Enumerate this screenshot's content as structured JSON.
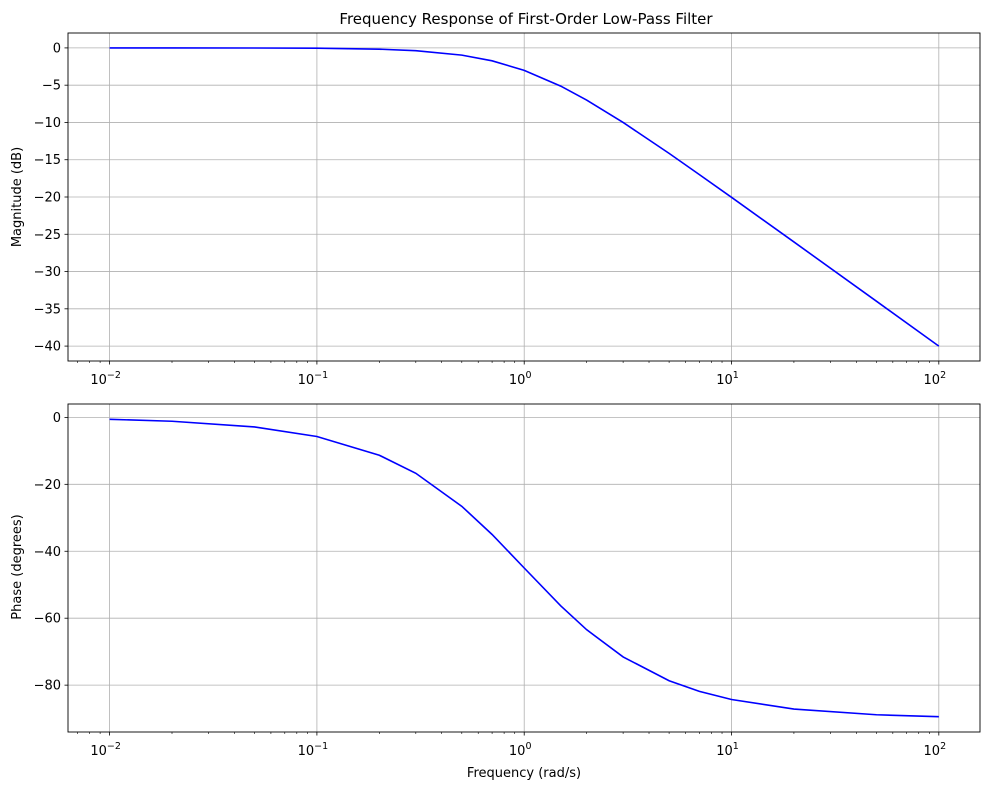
{
  "chart_data": [
    {
      "type": "line",
      "title": "Frequency Response of First-Order Low-Pass Filter",
      "xlabel": "",
      "ylabel": "Magnitude (dB)",
      "xscale": "log",
      "xlim": [
        0.0063,
        158
      ],
      "ylim": [
        -42,
        2
      ],
      "xticks": [
        0.01,
        0.1,
        1,
        10,
        100
      ],
      "xtick_labels": [
        {
          "base": "10",
          "exp": "−2"
        },
        {
          "base": "10",
          "exp": "−1"
        },
        {
          "base": "10",
          "exp": "0"
        },
        {
          "base": "10",
          "exp": "1"
        },
        {
          "base": "10",
          "exp": "2"
        }
      ],
      "yticks": [
        0,
        -5,
        -10,
        -15,
        -20,
        -25,
        -30,
        -35,
        -40
      ],
      "ytick_labels": [
        "0",
        "−5",
        "−10",
        "−15",
        "−20",
        "−25",
        "−30",
        "−35",
        "−40"
      ],
      "grid": true,
      "series": [
        {
          "color": "#0000ff",
          "x": [
            0.01,
            0.02,
            0.05,
            0.1,
            0.2,
            0.3,
            0.5,
            0.7,
            1,
            1.5,
            2,
            3,
            5,
            7,
            10,
            20,
            50,
            100
          ],
          "y": [
            0.0,
            -0.002,
            -0.011,
            -0.043,
            -0.17,
            -0.37,
            -0.97,
            -1.73,
            -3.01,
            -5.12,
            -6.99,
            -10.0,
            -14.15,
            -17.0,
            -20.04,
            -26.03,
            -33.98,
            -40.0
          ]
        }
      ]
    },
    {
      "type": "line",
      "title": "",
      "xlabel": "Frequency (rad/s)",
      "ylabel": "Phase (degrees)",
      "xscale": "log",
      "xlim": [
        0.0063,
        158
      ],
      "ylim": [
        -94,
        4
      ],
      "xticks": [
        0.01,
        0.1,
        1,
        10,
        100
      ],
      "xtick_labels": [
        {
          "base": "10",
          "exp": "−2"
        },
        {
          "base": "10",
          "exp": "−1"
        },
        {
          "base": "10",
          "exp": "0"
        },
        {
          "base": "10",
          "exp": "1"
        },
        {
          "base": "10",
          "exp": "2"
        }
      ],
      "yticks": [
        0,
        -20,
        -40,
        -60,
        -80
      ],
      "ytick_labels": [
        "0",
        "−20",
        "−40",
        "−60",
        "−80"
      ],
      "grid": true,
      "series": [
        {
          "color": "#0000ff",
          "x": [
            0.01,
            0.02,
            0.05,
            0.1,
            0.2,
            0.3,
            0.5,
            0.7,
            1,
            1.5,
            2,
            3,
            5,
            7,
            10,
            20,
            50,
            100
          ],
          "y": [
            -0.57,
            -1.15,
            -2.86,
            -5.71,
            -11.31,
            -16.7,
            -26.57,
            -34.99,
            -45.0,
            -56.31,
            -63.43,
            -71.57,
            -78.69,
            -81.87,
            -84.29,
            -87.14,
            -88.85,
            -89.43
          ]
        }
      ]
    }
  ]
}
